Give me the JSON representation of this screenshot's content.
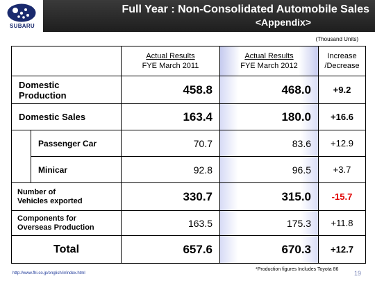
{
  "header": {
    "logo_text": "SUBARU",
    "title": "Full Year : Non-Consolidated Automobile Sales",
    "subtitle": "<Appendix>"
  },
  "unit_note": "(Thousand Units)",
  "columns": {
    "c2011_line1": "Actual Results",
    "c2011_line2": "FYE March 2011",
    "c2012_line1": "Actual Results",
    "c2012_line2": "FYE March 2012",
    "change_line1": "Increase",
    "change_line2": "/Decrease"
  },
  "rows": [
    {
      "label_line1": "Domestic",
      "label_line2": "Production",
      "fy2011": "458.8",
      "fy2012": "468.0",
      "change": "+9.2"
    },
    {
      "label": "Domestic Sales",
      "fy2011": "163.4",
      "fy2012": "180.0",
      "change": "+16.6"
    },
    {
      "label": "Passenger Car",
      "fy2011": "70.7",
      "fy2012": "83.6",
      "change": "+12.9"
    },
    {
      "label": "Minicar",
      "fy2011": "92.8",
      "fy2012": "96.5",
      "change": "+3.7"
    },
    {
      "label_line1": "Number of",
      "label_line2": "Vehicles exported",
      "fy2011": "330.7",
      "fy2012": "315.0",
      "change": "-15.7"
    },
    {
      "label_line1": "Components for",
      "label_line2": "Overseas Production",
      "fy2011": "163.5",
      "fy2012": "175.3",
      "change": "+11.8"
    },
    {
      "label": "Total",
      "fy2011": "657.6",
      "fy2012": "670.3",
      "change": "+12.7"
    }
  ],
  "footer": {
    "url": "http://www.fhi.co.jp/english/ir/index.html",
    "note": "*Production figures Includes Toyota 86",
    "page": "19"
  },
  "colors": {
    "header_bg": "#2a2a2a",
    "logo_navy": "#1a2a6e",
    "negative": "#e00000"
  }
}
